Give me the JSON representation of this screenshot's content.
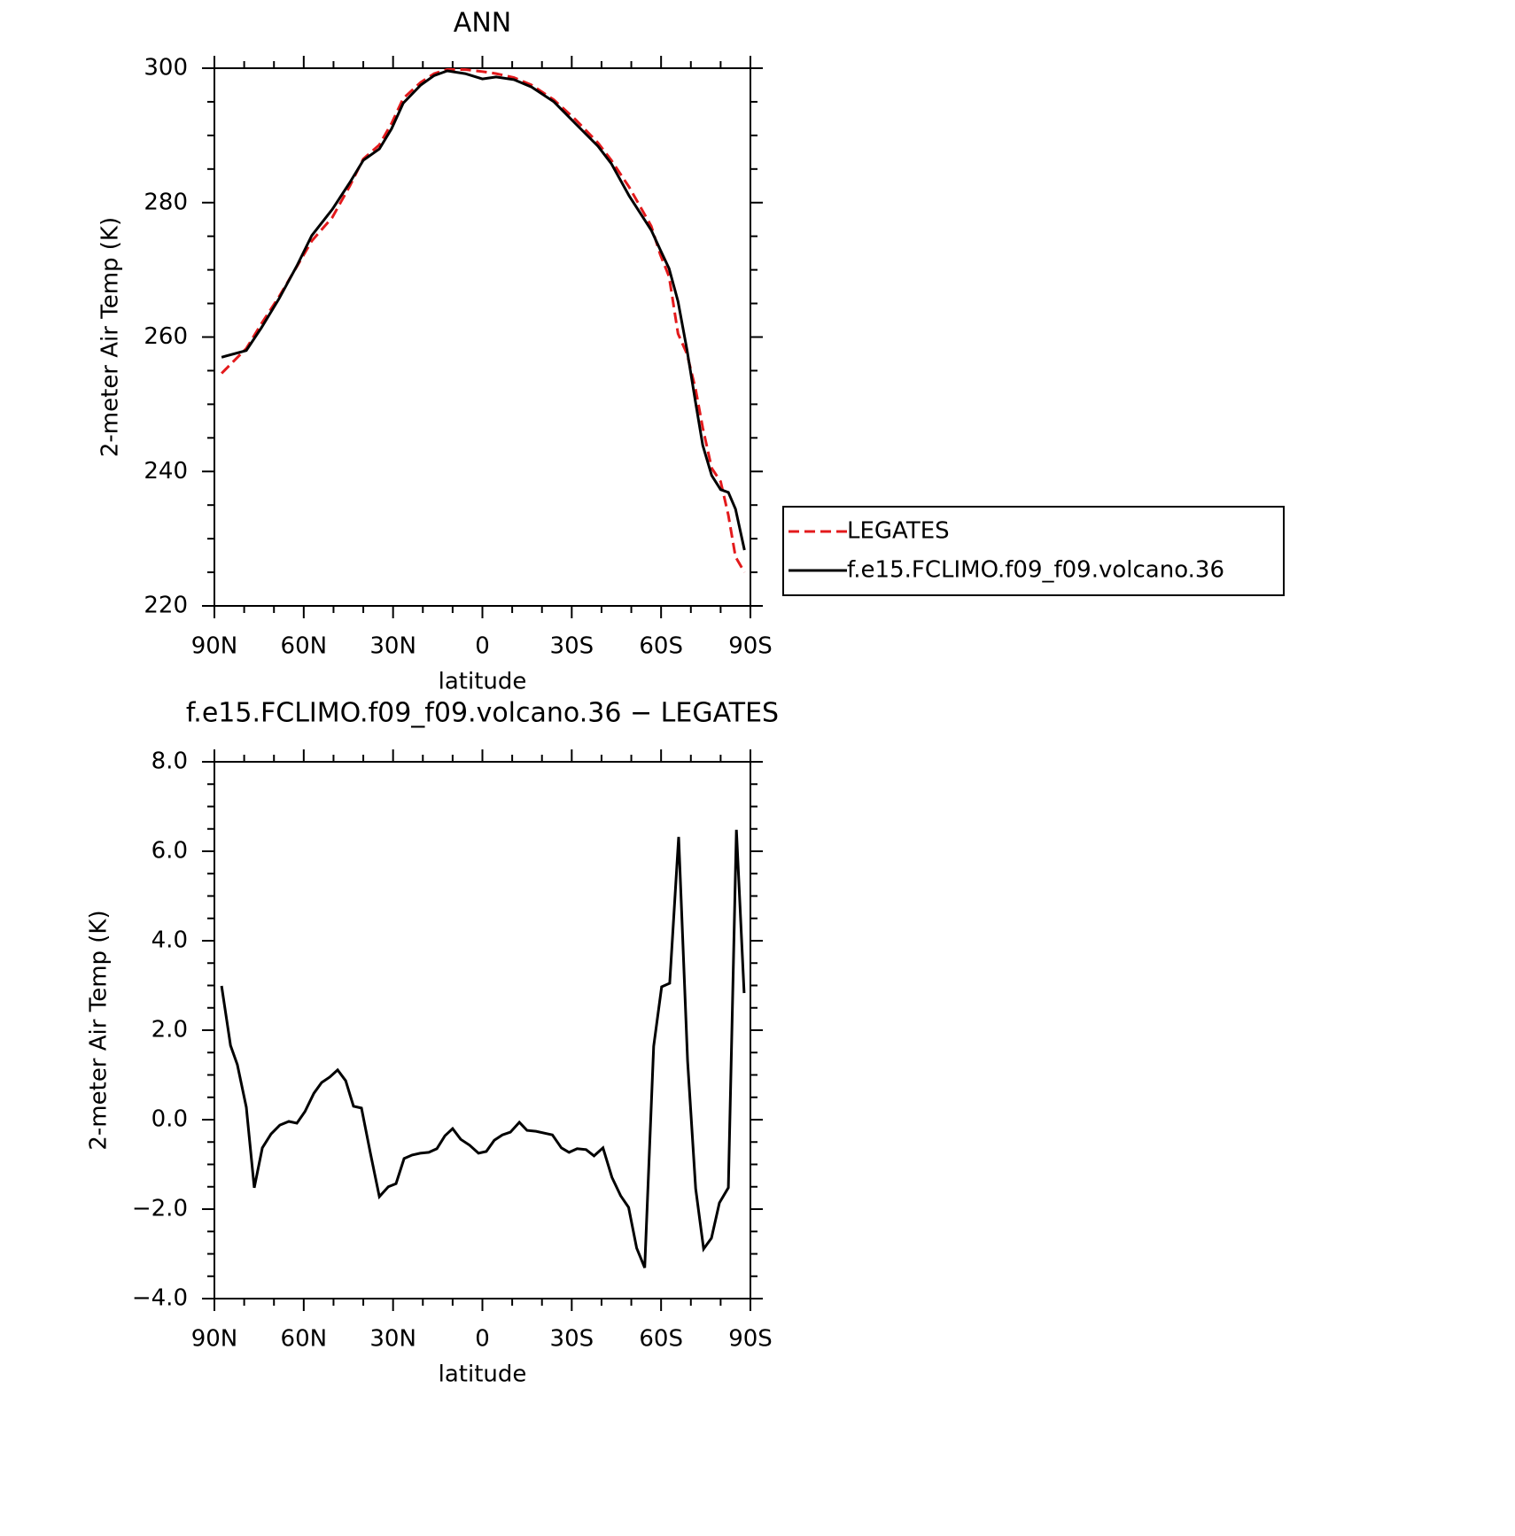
{
  "chart_data": [
    {
      "type": "line",
      "title": "ANN",
      "x_label": "latitude",
      "y_label": "2-meter Air Temp (K)",
      "x": [
        87.6,
        79.3,
        74.2,
        68.3,
        62.3,
        57.3,
        50.4,
        44.5,
        40,
        34.6,
        30.5,
        26.6,
        20.7,
        16.2,
        11.8,
        5.8,
        0,
        -4.6,
        -10.6,
        -16.5,
        -24,
        -31.4,
        -38.8,
        -43.3,
        -49.3,
        -56.7,
        -59.7,
        -62.7,
        -65.7,
        -68.7,
        -71.6,
        -74,
        -77,
        -80,
        -82.6,
        -85,
        -88
      ],
      "series": [
        {
          "name": "LEGATES",
          "color": "#e31a1c",
          "line_style": "dashed",
          "values": [
            254.6,
            258.3,
            262.0,
            266.0,
            270.5,
            274.3,
            277.8,
            282.5,
            286.5,
            288.6,
            291.8,
            295.5,
            297.9,
            299.2,
            299.8,
            299.8,
            299.5,
            299.2,
            298.6,
            297.5,
            295.3,
            292.3,
            288.9,
            286.3,
            282.3,
            276.5,
            272.3,
            269.0,
            260.5,
            257.5,
            252.2,
            246.5,
            240.5,
            238.5,
            233.5,
            227.3,
            225.0
          ]
        },
        {
          "name": "f.e15.FCLIMO.f09_f09.volcano.36",
          "color": "#000000",
          "line_style": "solid",
          "values": [
            257.0,
            258.0,
            261.4,
            265.7,
            270.6,
            275.1,
            279.0,
            283.0,
            286.3,
            288.0,
            291.0,
            294.8,
            297.5,
            298.9,
            299.6,
            299.2,
            298.4,
            298.7,
            298.3,
            297.2,
            295.0,
            291.7,
            288.4,
            285.8,
            281.0,
            275.9,
            273.0,
            270.2,
            265.3,
            258.1,
            250.2,
            243.9,
            239.4,
            237.3,
            236.9,
            234.4,
            228.3
          ]
        }
      ],
      "xlim": [
        90,
        -90
      ],
      "xticks": [
        {
          "value": 90,
          "label": "90N"
        },
        {
          "value": 60,
          "label": "60N"
        },
        {
          "value": 30,
          "label": "30N"
        },
        0,
        {
          "value": -30,
          "label": "30S"
        },
        {
          "value": -60,
          "label": "60S"
        },
        {
          "value": -90,
          "label": "90S"
        }
      ],
      "ylim": [
        220,
        300
      ],
      "yticks": [
        220,
        240,
        260,
        280,
        300
      ],
      "grid": false,
      "legend": "outside right"
    },
    {
      "type": "line",
      "title": "f.e15.FCLIMO.f09_f09.volcano.36 − LEGATES",
      "x_label": "latitude",
      "y_label": "2-meter Air Temp (K)",
      "x": [
        87.6,
        84.6,
        82.3,
        79.3,
        76.6,
        73.9,
        71,
        68,
        65,
        62.3,
        59.6,
        56.6,
        54,
        51.3,
        48.6,
        45.9,
        43.3,
        40.6,
        37.6,
        34.6,
        31.6,
        29,
        26.3,
        23.6,
        20.9,
        18,
        15.3,
        12.6,
        10,
        7.3,
        4.3,
        1.3,
        -1.3,
        -4,
        -6.7,
        -9.4,
        -12.4,
        -15,
        -18,
        -20.8,
        -23.5,
        -26.5,
        -29.1,
        -31.8,
        -34.8,
        -37.5,
        -40.5,
        -43.5,
        -46.4,
        -49.1,
        -51.8,
        -54.5,
        -57.5,
        -60.2,
        -62.9,
        -65.9,
        -68.9,
        -71.6,
        -74.3,
        -76.9,
        -79.6,
        -82.6,
        -85.3,
        -87.9
      ],
      "series": [
        {
          "name": "f.e15.FCLIMO.f09_f09.volcano.36 − LEGATES",
          "color": "#000000",
          "line_style": "solid",
          "values": [
            2.99,
            1.66,
            1.23,
            0.28,
            -1.52,
            -0.63,
            -0.32,
            -0.12,
            -0.04,
            -0.08,
            0.18,
            0.59,
            0.83,
            0.95,
            1.11,
            0.87,
            0.3,
            0.26,
            -0.75,
            -1.72,
            -1.5,
            -1.43,
            -0.87,
            -0.79,
            -0.75,
            -0.73,
            -0.65,
            -0.36,
            -0.2,
            -0.44,
            -0.57,
            -0.75,
            -0.71,
            -0.46,
            -0.34,
            -0.28,
            -0.06,
            -0.24,
            -0.26,
            -0.3,
            -0.34,
            -0.63,
            -0.73,
            -0.65,
            -0.67,
            -0.81,
            -0.63,
            -1.29,
            -1.7,
            -1.96,
            -2.87,
            -3.31,
            1.64,
            2.97,
            3.05,
            6.32,
            1.31,
            -1.54,
            -2.89,
            -2.65,
            -1.86,
            -1.52,
            6.48,
            2.83
          ]
        }
      ],
      "xlim": [
        90,
        -90
      ],
      "xticks": [
        {
          "value": 90,
          "label": "90N"
        },
        {
          "value": 60,
          "label": "60N"
        },
        {
          "value": 30,
          "label": "30N"
        },
        0,
        {
          "value": -30,
          "label": "30S"
        },
        {
          "value": -60,
          "label": "60S"
        },
        {
          "value": -90,
          "label": "90S"
        }
      ],
      "ylim": [
        -4,
        8
      ],
      "yticks": [
        {
          "value": -4,
          "label": "−4.0"
        },
        {
          "value": -2,
          "label": "−2.0"
        },
        {
          "value": 0,
          "label": "0.0"
        },
        {
          "value": 2,
          "label": "2.0"
        },
        {
          "value": 4,
          "label": "4.0"
        },
        {
          "value": 6,
          "label": "6.0"
        },
        {
          "value": 8,
          "label": "8.0"
        }
      ],
      "grid": false
    }
  ]
}
